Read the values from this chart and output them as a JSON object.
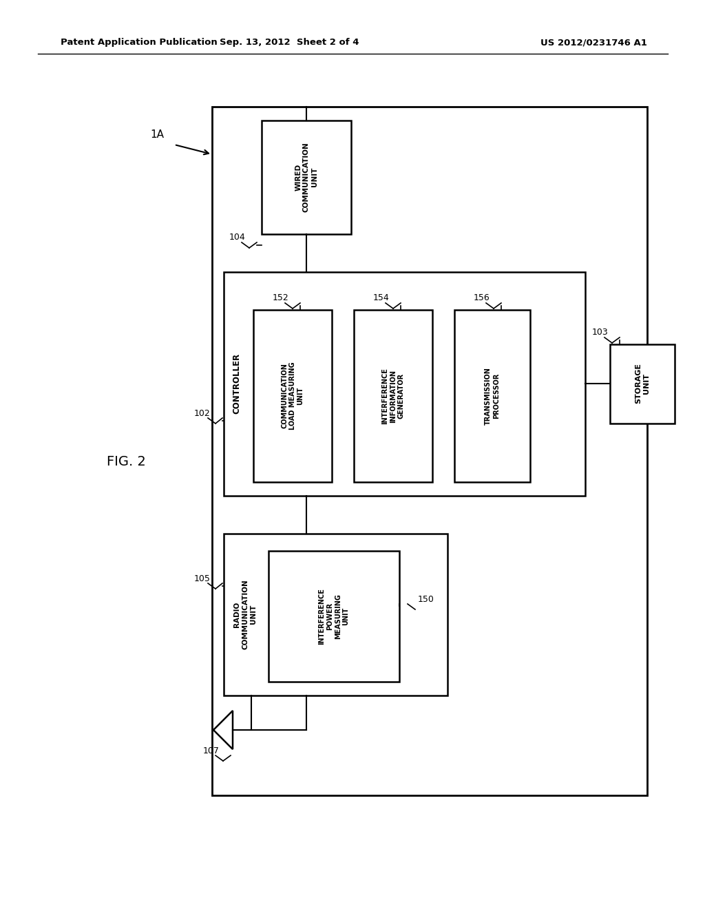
{
  "header_left": "Patent Application Publication",
  "header_center": "Sep. 13, 2012  Sheet 2 of 4",
  "header_right": "US 2012/0231746 A1",
  "fig_label": "FIG. 2",
  "background_color": "#ffffff",
  "text_color": "#000000"
}
